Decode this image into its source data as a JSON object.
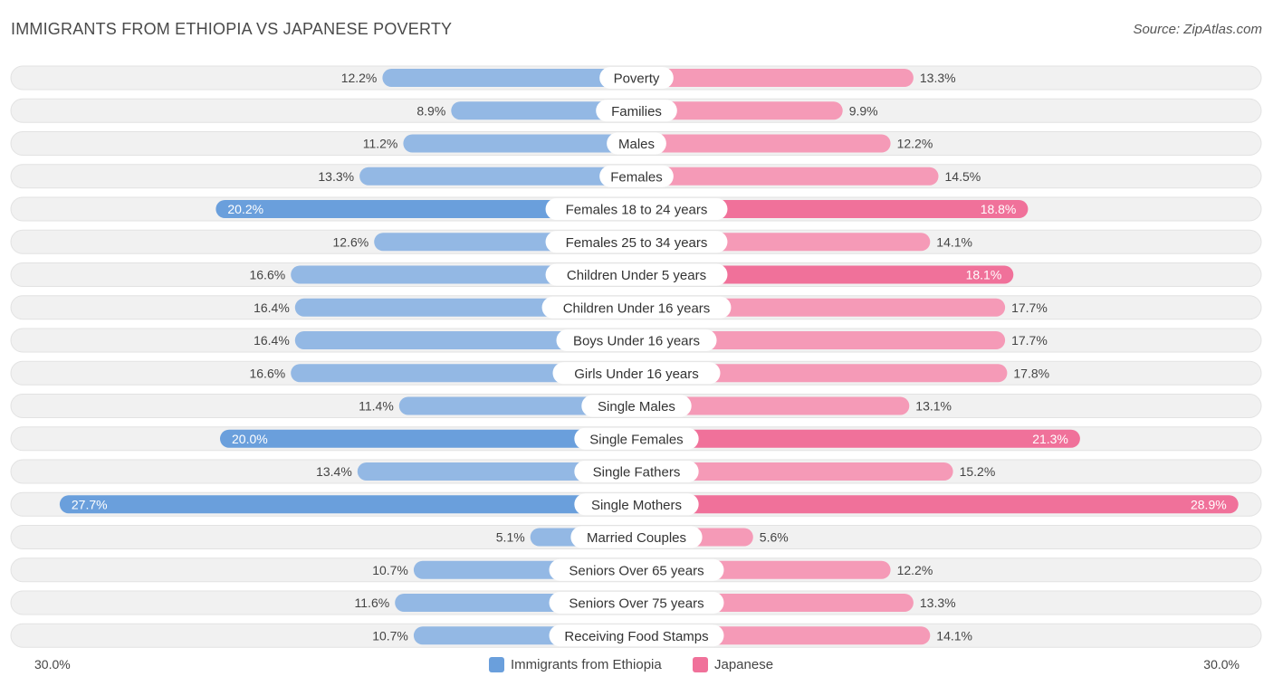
{
  "title": "IMMIGRANTS FROM ETHIOPIA VS JAPANESE POVERTY",
  "source": "Source: ZipAtlas.com",
  "colors": {
    "left_bar": "#93b8e4",
    "left_bar_strong": "#6a9fdc",
    "right_bar": "#f59ab7",
    "right_bar_strong": "#f0719a",
    "row_bg": "#f1f1f1",
    "row_border": "#e2e2e2"
  },
  "chart_data": {
    "type": "bar",
    "orientation": "horizontal-diverging",
    "title": "IMMIGRANTS FROM ETHIOPIA VS JAPANESE POVERTY",
    "categories": [
      "Poverty",
      "Families",
      "Males",
      "Females",
      "Females 18 to 24 years",
      "Females 25 to 34 years",
      "Children Under 5 years",
      "Children Under 16 years",
      "Boys Under 16 years",
      "Girls Under 16 years",
      "Single Males",
      "Single Females",
      "Single Fathers",
      "Single Mothers",
      "Married Couples",
      "Seniors Over 65 years",
      "Seniors Over 75 years",
      "Receiving Food Stamps"
    ],
    "series": [
      {
        "name": "Immigrants from Ethiopia",
        "side": "left",
        "values": [
          12.2,
          8.9,
          11.2,
          13.3,
          20.2,
          12.6,
          16.6,
          16.4,
          16.4,
          16.6,
          11.4,
          20.0,
          13.4,
          27.7,
          5.1,
          10.7,
          11.6,
          10.7
        ],
        "labels": [
          "12.2%",
          "8.9%",
          "11.2%",
          "13.3%",
          "20.2%",
          "12.6%",
          "16.6%",
          "16.4%",
          "16.4%",
          "16.6%",
          "11.4%",
          "20.0%",
          "13.4%",
          "27.7%",
          "5.1%",
          "10.7%",
          "11.6%",
          "10.7%"
        ]
      },
      {
        "name": "Japanese",
        "side": "right",
        "values": [
          13.3,
          9.9,
          12.2,
          14.5,
          18.8,
          14.1,
          18.1,
          17.7,
          17.7,
          17.8,
          13.1,
          21.3,
          15.2,
          28.9,
          5.6,
          12.2,
          13.3,
          14.1
        ],
        "labels": [
          "13.3%",
          "9.9%",
          "12.2%",
          "14.5%",
          "18.8%",
          "14.1%",
          "18.1%",
          "17.7%",
          "17.7%",
          "17.8%",
          "13.1%",
          "21.3%",
          "15.2%",
          "28.9%",
          "5.6%",
          "12.2%",
          "13.3%",
          "14.1%"
        ]
      }
    ],
    "xlim": [
      0,
      30.0
    ],
    "axis_labels": {
      "left": "30.0%",
      "right": "30.0%"
    },
    "legend": [
      "Immigrants from Ethiopia",
      "Japanese"
    ],
    "legend_position": "bottom-center"
  }
}
